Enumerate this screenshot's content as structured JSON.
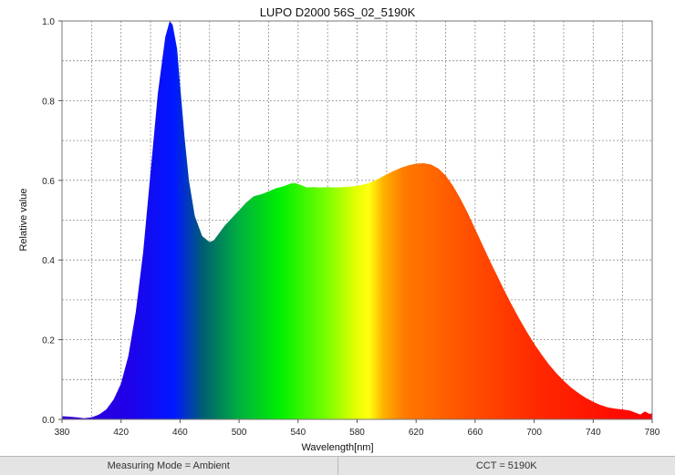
{
  "chart_data": {
    "type": "area",
    "title": "LUPO D2000 56S_02_5190K",
    "xlabel": "Wavelength[nm]",
    "ylabel": "Relative value",
    "xlim": [
      380,
      780
    ],
    "ylim": [
      0,
      1.0
    ],
    "x_ticks": [
      "380",
      "420",
      "460",
      "500",
      "540",
      "580",
      "620",
      "660",
      "700",
      "740",
      "780"
    ],
    "y_ticks": [
      "0.0",
      "0.2",
      "0.4",
      "0.6",
      "0.8",
      "1.0"
    ],
    "grid": true,
    "fill": "visible-spectrum-gradient",
    "series": [
      {
        "x": [
          380,
          385,
          390,
          395,
          400,
          405,
          410,
          415,
          420,
          425,
          430,
          435,
          440,
          445,
          450,
          453,
          455,
          458,
          460,
          463,
          466,
          470,
          475,
          480,
          483,
          487,
          490,
          495,
          500,
          505,
          510,
          515,
          520,
          525,
          530,
          535,
          538,
          542,
          546,
          550,
          555,
          560,
          565,
          570,
          575,
          580,
          585,
          590,
          595,
          600,
          605,
          610,
          615,
          620,
          625,
          630,
          635,
          640,
          645,
          650,
          655,
          660,
          665,
          670,
          675,
          680,
          685,
          690,
          695,
          700,
          705,
          710,
          715,
          720,
          725,
          730,
          735,
          740,
          745,
          750,
          755,
          760,
          765,
          770,
          772,
          775,
          778,
          780
        ],
        "y": [
          0.008,
          0.007,
          0.005,
          0.003,
          0.005,
          0.012,
          0.025,
          0.05,
          0.09,
          0.16,
          0.27,
          0.42,
          0.62,
          0.82,
          0.96,
          1.0,
          0.99,
          0.93,
          0.84,
          0.71,
          0.6,
          0.51,
          0.46,
          0.445,
          0.45,
          0.47,
          0.485,
          0.505,
          0.525,
          0.545,
          0.56,
          0.565,
          0.572,
          0.58,
          0.585,
          0.592,
          0.593,
          0.588,
          0.582,
          0.583,
          0.582,
          0.583,
          0.582,
          0.583,
          0.584,
          0.586,
          0.59,
          0.596,
          0.605,
          0.615,
          0.624,
          0.632,
          0.638,
          0.642,
          0.643,
          0.64,
          0.63,
          0.612,
          0.586,
          0.554,
          0.518,
          0.478,
          0.438,
          0.398,
          0.36,
          0.322,
          0.286,
          0.252,
          0.22,
          0.19,
          0.163,
          0.138,
          0.116,
          0.097,
          0.08,
          0.066,
          0.054,
          0.044,
          0.036,
          0.03,
          0.027,
          0.025,
          0.022,
          0.015,
          0.012,
          0.02,
          0.014,
          0.015
        ]
      }
    ]
  },
  "status_bar": {
    "measuring_mode": "Measuring Mode = Ambient",
    "cct": "CCT = 5190K"
  }
}
